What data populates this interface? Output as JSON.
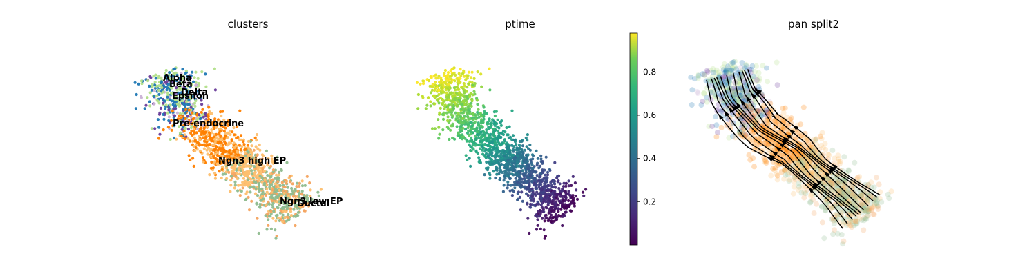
{
  "chart_data": [
    {
      "type": "scatter",
      "title": "clusters",
      "legend": "on data",
      "axes": "off",
      "clusters": [
        {
          "name": "Ductal",
          "color": "#8fbc8f",
          "center": [
            0.72,
            0.85
          ],
          "n": 380
        },
        {
          "name": "Ngn3 low EP",
          "color": "#f4a460",
          "center": [
            0.7,
            0.83
          ],
          "n": 140
        },
        {
          "name": "Ngn3 high EP",
          "color": "#fdbf6f",
          "center": [
            0.48,
            0.62
          ],
          "n": 420
        },
        {
          "name": "Pre-endocrine",
          "color": "#ff7f00",
          "center": [
            0.3,
            0.45
          ],
          "n": 360
        },
        {
          "name": "Alpha",
          "color": "#1f78b4",
          "center": [
            0.14,
            0.18
          ],
          "n": 170
        },
        {
          "name": "Beta",
          "color": "#b2df8a",
          "center": [
            0.16,
            0.22
          ],
          "n": 180
        },
        {
          "name": "Delta",
          "color": "#6a3d9a",
          "center": [
            0.21,
            0.27
          ],
          "n": 50
        },
        {
          "name": "Epsilon",
          "color": "#cab2d6",
          "center": [
            0.18,
            0.28
          ],
          "n": 50
        }
      ],
      "labels": [
        "Alpha",
        "Beta",
        "Delta",
        "Epsilon",
        "Pre-endocrine",
        "Ngn3 high EP",
        "Ngn3 low EP",
        "Ductal"
      ]
    },
    {
      "type": "scatter",
      "title": "ptime",
      "colorbar": {
        "min": 0.0,
        "max": 0.98,
        "ticks": [
          0.2,
          0.4,
          0.6,
          0.8
        ],
        "colormap": "viridis"
      },
      "axes": "off"
    },
    {
      "type": "scatter",
      "title": "pan split2",
      "overlay": "streamlines",
      "axes": "off"
    }
  ]
}
